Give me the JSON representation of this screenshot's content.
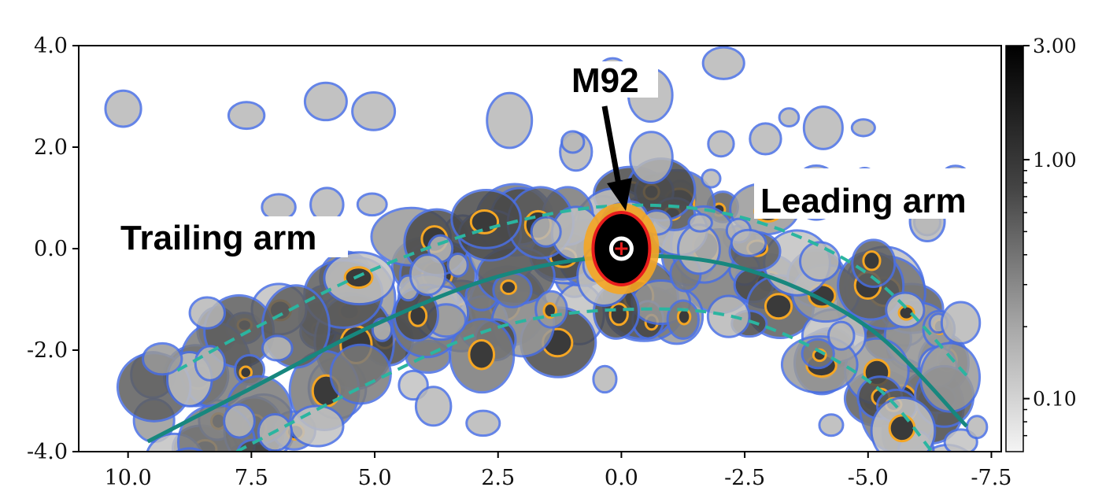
{
  "chart_data": {
    "type": "heatmap",
    "title": "",
    "xlabel": "",
    "ylabel": "",
    "xlim": [
      11.0,
      -7.7
    ],
    "ylim": [
      -4.0,
      4.0
    ],
    "x_ticks": [
      10.0,
      7.5,
      5.0,
      2.5,
      0.0,
      -2.5,
      -5.0,
      -7.5
    ],
    "x_tick_labels": [
      "10.0",
      "7.5",
      "5.0",
      "2.5",
      "0.0",
      "-2.5",
      "-5.0",
      "-7.5"
    ],
    "y_ticks": [
      4.0,
      2.0,
      0.0,
      -2.0,
      -4.0
    ],
    "y_tick_labels": [
      "4.0",
      "2.0",
      "0.0",
      "-2.0",
      "-4.0"
    ],
    "colorbar": {
      "scale": "log",
      "colormap": "gray_r",
      "range": [
        0.06,
        3.0
      ],
      "ticks": [
        3.0,
        1.0,
        0.1
      ],
      "tick_labels": [
        "3.00",
        "1.00",
        "0.10"
      ]
    },
    "contour_colors": [
      "#4a6fe3",
      "#f5a623",
      "#e81c1c"
    ],
    "cluster": {
      "name": "M92",
      "x": 0.0,
      "y": 0.0
    },
    "orbit_center": {
      "color": "#17877e",
      "points": [
        [
          9.6,
          -3.8
        ],
        [
          7.5,
          -2.75
        ],
        [
          5.0,
          -1.5
        ],
        [
          2.5,
          -0.55
        ],
        [
          0.0,
          -0.15
        ],
        [
          -2.5,
          -0.4
        ],
        [
          -5.0,
          -1.55
        ],
        [
          -7.0,
          -3.5
        ]
      ]
    },
    "orbit_upper": {
      "color": "#2bb5a0",
      "points": [
        [
          9.0,
          -2.4
        ],
        [
          7.5,
          -1.6
        ],
        [
          5.0,
          -0.4
        ],
        [
          2.5,
          0.45
        ],
        [
          0.0,
          0.85
        ],
        [
          -2.5,
          0.6
        ],
        [
          -5.0,
          -0.5
        ],
        [
          -7.0,
          -2.5
        ]
      ]
    },
    "orbit_lower": {
      "color": "#2bb5a0",
      "points": [
        [
          7.8,
          -4.0
        ],
        [
          5.0,
          -2.6
        ],
        [
          2.5,
          -1.55
        ],
        [
          0.0,
          -1.2
        ],
        [
          -2.5,
          -1.4
        ],
        [
          -5.0,
          -2.6
        ],
        [
          -6.3,
          -4.0
        ]
      ]
    },
    "annotations": {
      "cluster_label": "M92",
      "leading_label": "Leading arm",
      "trailing_label": "Trailing arm"
    }
  }
}
